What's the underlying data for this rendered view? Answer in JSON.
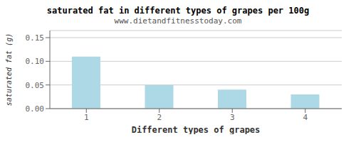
{
  "chart_data": {
    "type": "bar",
    "title": "saturated fat in different types of grapes per 100g",
    "subtitle": "www.dietandfitnesstoday.com",
    "xlabel": "Different types of grapes",
    "ylabel": "saturated fat (g)",
    "categories": [
      1,
      2,
      3,
      4
    ],
    "values": [
      0.11,
      0.05,
      0.04,
      0.03
    ],
    "color": "#add8e6",
    "ylim": [
      0,
      0.165
    ],
    "yticks": [
      {
        "value": 0,
        "label": "0.00"
      },
      0.05,
      {
        "value": 0.1,
        "label": "0.10"
      },
      0.15
    ],
    "grid": true
  }
}
